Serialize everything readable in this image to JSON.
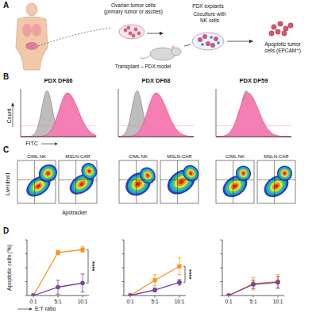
{
  "panel_a": {
    "label": "A",
    "steps": [
      [
        "Ovarian tumor cells",
        "(primary tumor or ascites)"
      ],
      [
        "Transplant – PDX model"
      ],
      [
        "PDX explants"
      ],
      [
        "Coculture with",
        "NK cells"
      ],
      [
        "Apoptotic tumor",
        "cells (EPCAM⁺)"
      ]
    ]
  },
  "panel_b": {
    "label": "B",
    "titles": [
      "PDX DF86",
      "PDX DF68",
      "PDX DF59"
    ],
    "y_label": "Count",
    "x_label": "FITC"
  },
  "panel_c": {
    "label": "C",
    "plot_titles": [
      "CIML NK",
      "MSLN-CAR"
    ],
    "y_label": "Live/dead",
    "x_label": "Apotracker"
  },
  "panel_d": {
    "label": "D"
  },
  "chart_data": [
    {
      "type": "line",
      "y_label": "Apoptotic cells (%)",
      "x_label": "E:T ratio",
      "categories": [
        "0:1",
        "5:1",
        "10:1"
      ],
      "ylim": [
        0,
        80
      ],
      "yticks": [
        0,
        20,
        40,
        60,
        80
      ],
      "tick_labels": "x",
      "series": [
        {
          "color": "#f7941d",
          "marker": "square",
          "values": [
            0,
            62,
            66
          ],
          "errors": [
            0,
            3,
            4
          ]
        },
        {
          "color": "#7b3fa0",
          "marker": "circle",
          "values": [
            0,
            12,
            18
          ],
          "errors": [
            0,
            10,
            13
          ]
        }
      ],
      "annotations": [
        "****"
      ]
    },
    {
      "type": "line",
      "categories": [
        "0:1",
        "5:1",
        "10:1"
      ],
      "ylim": [
        0,
        80
      ],
      "yticks": [
        0,
        20,
        40,
        60,
        80
      ],
      "tick_labels": "x",
      "series": [
        {
          "color": "#f7941d",
          "marker": "square",
          "values": [
            0,
            22,
            42
          ],
          "errors": [
            0,
            8,
            12
          ]
        },
        {
          "color": "#7b3fa0",
          "marker": "circle",
          "values": [
            0,
            8,
            19
          ],
          "errors": [
            0,
            3,
            4
          ]
        }
      ],
      "annotations": [
        "****"
      ]
    },
    {
      "type": "line",
      "categories": [
        "0:1",
        "5:1",
        "10:1"
      ],
      "ylim": [
        0,
        80
      ],
      "yticks": [
        0,
        20,
        40,
        60,
        80
      ],
      "tick_labels": "x",
      "series": [
        {
          "color": "#f7941d",
          "marker": "square",
          "values": [
            0,
            17,
            20
          ],
          "errors": [
            0,
            9,
            10
          ]
        },
        {
          "color": "#7b3fa0",
          "marker": "circle",
          "values": [
            0,
            16,
            19
          ],
          "errors": [
            0,
            6,
            8
          ]
        }
      ]
    }
  ]
}
